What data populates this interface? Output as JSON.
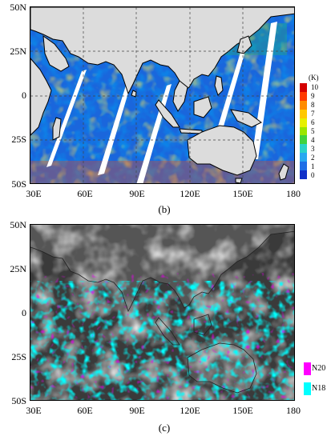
{
  "axis": {
    "lat_labels": [
      "50N",
      "25N",
      "0",
      "25S",
      "50S"
    ],
    "lon_labels": [
      "30E",
      "60E",
      "90E",
      "120E",
      "150E",
      "180"
    ]
  },
  "panel_b": {
    "caption": "(b)",
    "colorbar": {
      "unit": "(K)",
      "labels": [
        "10",
        "9",
        "8",
        "7",
        "6",
        "5",
        "4",
        "3",
        "2",
        "1",
        "0"
      ],
      "colors": [
        "#d40000",
        "#ff3a00",
        "#ff8c00",
        "#ffc800",
        "#e6f000",
        "#9ae600",
        "#3fd23f",
        "#2ad2c8",
        "#28a8f0",
        "#1e6ee6",
        "#1030c8"
      ]
    }
  },
  "panel_c": {
    "caption": "(c)",
    "legend": [
      {
        "label": "N20",
        "color": "#ff00ff"
      },
      {
        "label": "N18",
        "color": "#00ffff"
      }
    ]
  }
}
